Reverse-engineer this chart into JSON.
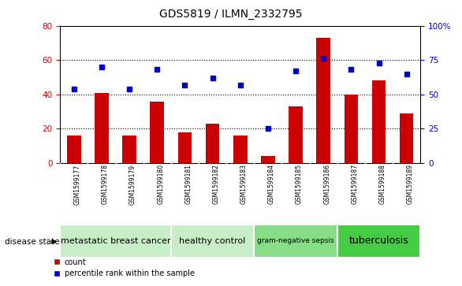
{
  "title": "GDS5819 / ILMN_2332795",
  "samples": [
    "GSM1599177",
    "GSM1599178",
    "GSM1599179",
    "GSM1599180",
    "GSM1599181",
    "GSM1599182",
    "GSM1599183",
    "GSM1599184",
    "GSM1599185",
    "GSM1599186",
    "GSM1599187",
    "GSM1599188",
    "GSM1599189"
  ],
  "counts": [
    16,
    41,
    16,
    36,
    18,
    23,
    16,
    4,
    33,
    73,
    40,
    48,
    29
  ],
  "percentiles": [
    54,
    70,
    54,
    68,
    57,
    62,
    57,
    25,
    67,
    76,
    68,
    73,
    65
  ],
  "left_ylim": [
    0,
    80
  ],
  "right_ylim": [
    0,
    100
  ],
  "left_yticks": [
    0,
    20,
    40,
    60,
    80
  ],
  "right_yticks": [
    0,
    25,
    50,
    75,
    100
  ],
  "right_yticklabels": [
    "0",
    "25",
    "50",
    "75",
    "100%"
  ],
  "bar_color": "#CC0000",
  "dot_color": "#0000CC",
  "groups": [
    {
      "label": "metastatic breast cancer",
      "start": 0,
      "end": 3
    },
    {
      "label": "healthy control",
      "start": 4,
      "end": 6
    },
    {
      "label": "gram-negative sepsis",
      "start": 7,
      "end": 9
    },
    {
      "label": "tuberculosis",
      "start": 10,
      "end": 12
    }
  ],
  "group_colors": [
    "#c8eec8",
    "#c8eec8",
    "#88dd88",
    "#44cc44"
  ],
  "group_font_sizes": [
    8,
    8,
    6.5,
    9
  ],
  "xlabel_disease": "disease state",
  "legend_count_label": "count",
  "legend_pct_label": "percentile rank within the sample",
  "tick_label_color_left": "#CC0000",
  "tick_label_color_right": "#0000CC",
  "sample_bg_color": "#d0d0d0",
  "grid_dotted_ticks": [
    20,
    40,
    60
  ]
}
